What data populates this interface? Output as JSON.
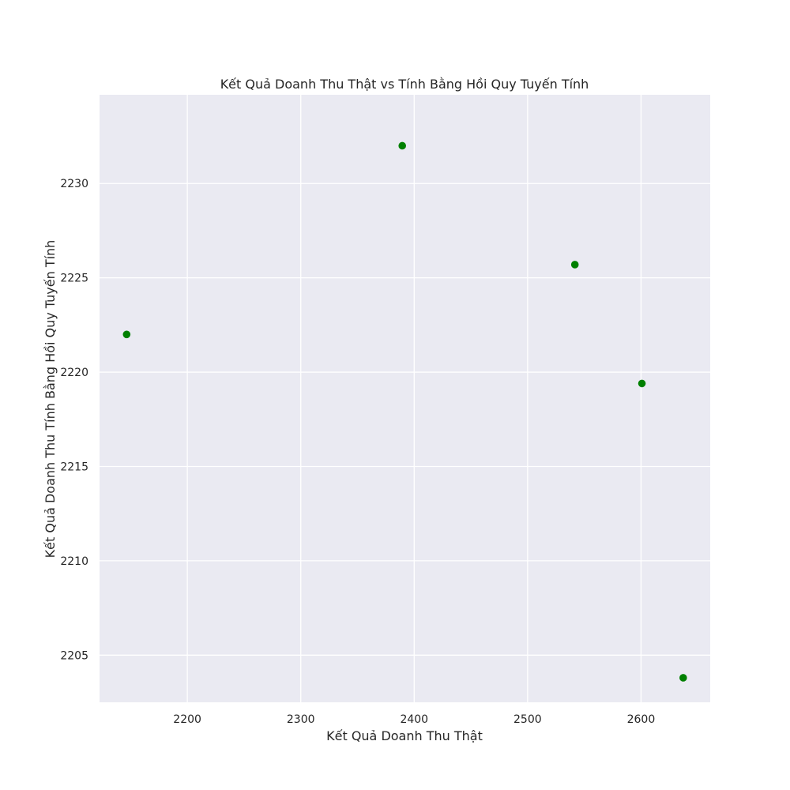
{
  "chart_data": {
    "type": "scatter",
    "title": "Kết Quả Doanh Thu Thật vs Tính Bằng Hồi Quy Tuyến Tính",
    "xlabel": "Kết Quả Doanh Thu Thật",
    "ylabel": "Kết Quả Doanh Thu Tính Bằng Hồi Quy Tuyến Tính",
    "xlim": [
      2122.6,
      2661.0
    ],
    "ylim": [
      2202.5,
      2234.7
    ],
    "xticks": [
      2200,
      2300,
      2400,
      2500,
      2600
    ],
    "yticks": [
      2205,
      2210,
      2215,
      2220,
      2225,
      2230
    ],
    "grid": true,
    "legend": "none",
    "series": [
      {
        "color": "#008000",
        "points": [
          {
            "x": 2146.5,
            "y": 2222.0
          },
          {
            "x": 2389.5,
            "y": 2232.0
          },
          {
            "x": 2541.7,
            "y": 2225.7
          },
          {
            "x": 2600.8,
            "y": 2219.4
          },
          {
            "x": 2637.2,
            "y": 2203.8
          }
        ]
      }
    ],
    "colors": {
      "plot_background": "#eaeaf2",
      "grid": "#ffffff",
      "text": "#262626"
    }
  }
}
